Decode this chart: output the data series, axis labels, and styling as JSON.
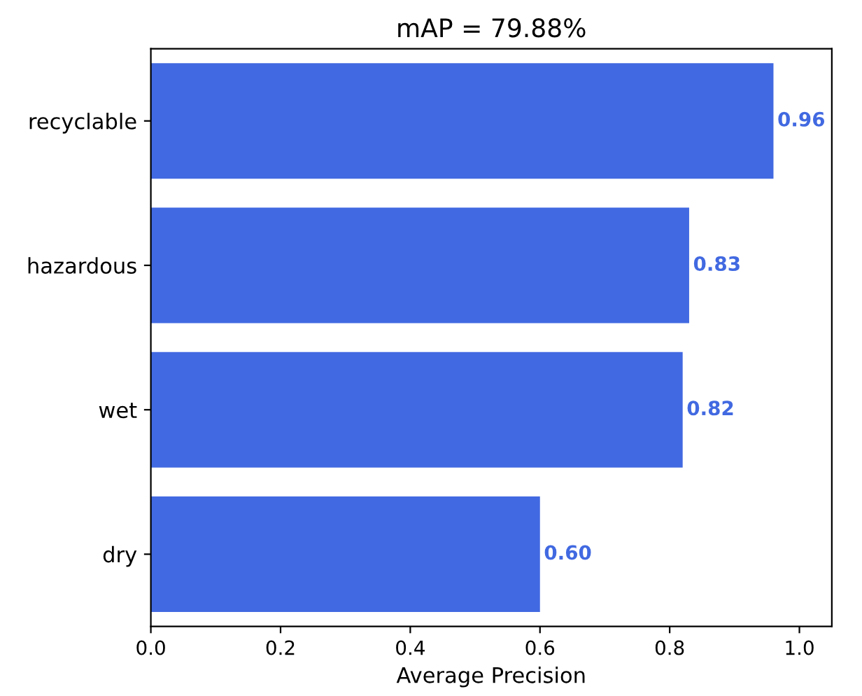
{
  "chart_data": {
    "type": "bar",
    "orientation": "horizontal",
    "title": "mAP = 79.88%",
    "xlabel": "Average Precision",
    "categories": [
      "recyclable",
      "hazardous",
      "wet",
      "dry"
    ],
    "values": [
      0.96,
      0.83,
      0.82,
      0.6
    ],
    "color": "#4169e1",
    "value_labels": [
      "0.96",
      "0.83",
      "0.82",
      "0.60"
    ],
    "xlim": [
      0,
      1.05
    ],
    "xticks": [
      {
        "value": 0,
        "label": "0.0"
      },
      0.2,
      0.4,
      0.6,
      0.8,
      {
        "value": 1,
        "label": "1.0"
      }
    ]
  }
}
